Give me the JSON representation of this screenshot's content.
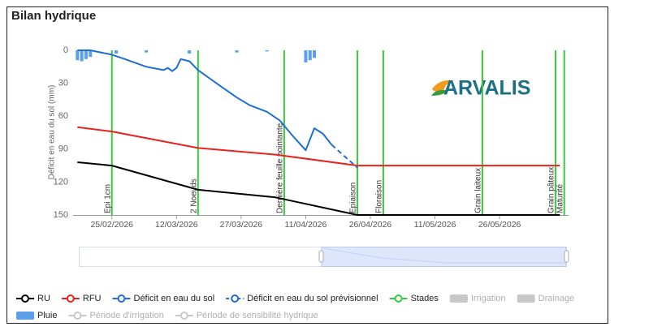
{
  "chart_data": {
    "type": "line",
    "title": "Bilan hydrique",
    "ylabel": "Déficit en eau du sol (mm)",
    "logo": "ARVALIS",
    "ylim": [
      0,
      150
    ],
    "yticks": [
      0,
      30,
      60,
      90,
      120,
      150
    ],
    "y_inverted": true,
    "xlim": [
      "2026-02-16",
      "2026-06-11"
    ],
    "xticks": [
      {
        "value": "2026-02-25",
        "label": "25/02/2026"
      },
      {
        "value": "2026-03-12",
        "label": "12/03/2026"
      },
      {
        "value": "2026-03-27",
        "label": "27/03/2026"
      },
      {
        "value": "2026-04-11",
        "label": "11/04/2026"
      },
      {
        "value": "2026-04-26",
        "label": "26/04/2026"
      },
      {
        "value": "2026-05-11",
        "label": "11/05/2026"
      },
      {
        "value": "2026-05-26",
        "label": "26/05/2026"
      }
    ],
    "series": [
      {
        "name": "RU",
        "color": "#000000",
        "kind": "line",
        "visible": true,
        "x": [
          "2026-02-17",
          "2026-02-25",
          "2026-03-17",
          "2026-04-04",
          "2026-04-23",
          "2026-06-09"
        ],
        "values": [
          102,
          105,
          127,
          134,
          150,
          150
        ]
      },
      {
        "name": "RFU",
        "color": "#e8231e",
        "kind": "line",
        "visible": true,
        "x": [
          "2026-02-17",
          "2026-02-25",
          "2026-03-17",
          "2026-04-04",
          "2026-04-23",
          "2026-06-09"
        ],
        "values": [
          70,
          74,
          89,
          95,
          105,
          105
        ]
      },
      {
        "name": "Déficit en eau du sol",
        "color": "#1f6fd1",
        "kind": "line",
        "visible": true,
        "x": [
          "2026-02-17",
          "2026-02-20",
          "2026-02-25",
          "2026-02-28",
          "2026-03-05",
          "2026-03-09",
          "2026-03-10",
          "2026-03-11",
          "2026-03-12",
          "2026-03-13",
          "2026-03-15",
          "2026-03-17",
          "2026-03-22",
          "2026-03-26",
          "2026-03-29",
          "2026-04-02",
          "2026-04-05",
          "2026-04-08",
          "2026-04-11",
          "2026-04-13",
          "2026-04-15",
          "2026-04-17"
        ],
        "values": [
          0,
          0,
          4,
          8,
          15,
          18,
          16,
          19,
          16,
          8,
          10,
          18,
          32,
          43,
          50,
          56,
          64,
          78,
          91,
          71,
          76,
          86
        ]
      },
      {
        "name": "Déficit en eau du sol prévisionnel",
        "color": "#1f6fd1",
        "kind": "dashed",
        "visible": true,
        "x": [
          "2026-04-17",
          "2026-04-23"
        ],
        "values": [
          86,
          107
        ]
      },
      {
        "name": "Stades",
        "color": "#3cc83c",
        "kind": "vline",
        "visible": true,
        "x": [
          "2026-02-25",
          "2026-03-17",
          "2026-04-06",
          "2026-04-23",
          "2026-04-29",
          "2026-05-22",
          "2026-06-08",
          "2026-06-10"
        ],
        "labels": [
          "Epi 1cm",
          "2 Noeuds",
          "Dernière feuille pointante",
          "Epiaison",
          "Floraison",
          "Grain laiteux",
          "Grain pâteux",
          "Maturité"
        ]
      },
      {
        "name": "Irrigation",
        "color": "#c8c8c8",
        "kind": "bar",
        "visible": false,
        "x": [],
        "values": []
      },
      {
        "name": "Drainage",
        "color": "#c8c8c8",
        "kind": "bar",
        "visible": false,
        "x": [],
        "values": []
      },
      {
        "name": "Pluie",
        "color": "#5aa0ea",
        "kind": "bar",
        "visible": true,
        "x": [
          "2026-02-17",
          "2026-02-18",
          "2026-02-19",
          "2026-02-20",
          "2026-02-26",
          "2026-03-05",
          "2026-03-15",
          "2026-03-26",
          "2026-04-02",
          "2026-04-11",
          "2026-04-12",
          "2026-04-13"
        ],
        "values": [
          9,
          10,
          8,
          6,
          3,
          2,
          3,
          2,
          1,
          11,
          9,
          7
        ]
      },
      {
        "name": "Période d'irrigation",
        "color": "#c8c8c8",
        "kind": "band",
        "visible": false,
        "x": [],
        "values": []
      },
      {
        "name": "Période de sensibilité hydrique",
        "color": "#c8c8c8",
        "kind": "band",
        "visible": false,
        "x": [],
        "values": []
      }
    ]
  }
}
